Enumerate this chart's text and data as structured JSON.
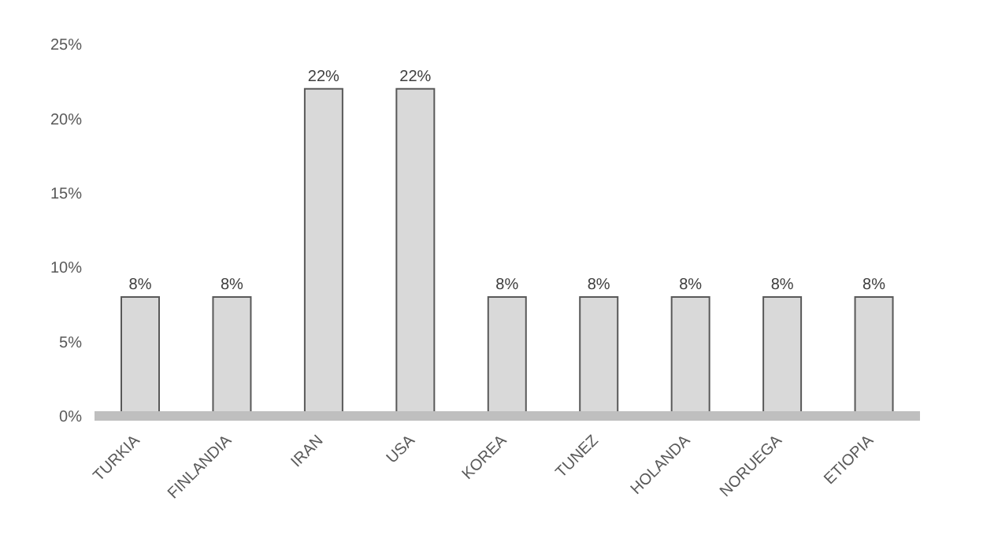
{
  "chart_data": {
    "type": "bar",
    "categories": [
      "TURKIA",
      "FINLANDIA",
      "IRAN",
      "USA",
      "KOREA",
      "TUNEZ",
      "HOLANDA",
      "NORUEGA",
      "ETIOPIA"
    ],
    "values": [
      8,
      8,
      22,
      22,
      8,
      8,
      8,
      8,
      8
    ],
    "value_labels": [
      "8%",
      "8%",
      "22%",
      "22%",
      "8%",
      "8%",
      "8%",
      "8%",
      "8%"
    ],
    "color": "#d9d9d9",
    "ylim": [
      0,
      25
    ],
    "yticks": [
      {
        "value": 0,
        "label": "0%"
      },
      {
        "value": 5,
        "label": "5%"
      },
      {
        "value": 10,
        "label": "10%"
      },
      {
        "value": 15,
        "label": "15%"
      },
      {
        "value": 20,
        "label": "20%"
      },
      {
        "value": 25,
        "label": "25%"
      }
    ],
    "grid": false,
    "legend": false
  }
}
